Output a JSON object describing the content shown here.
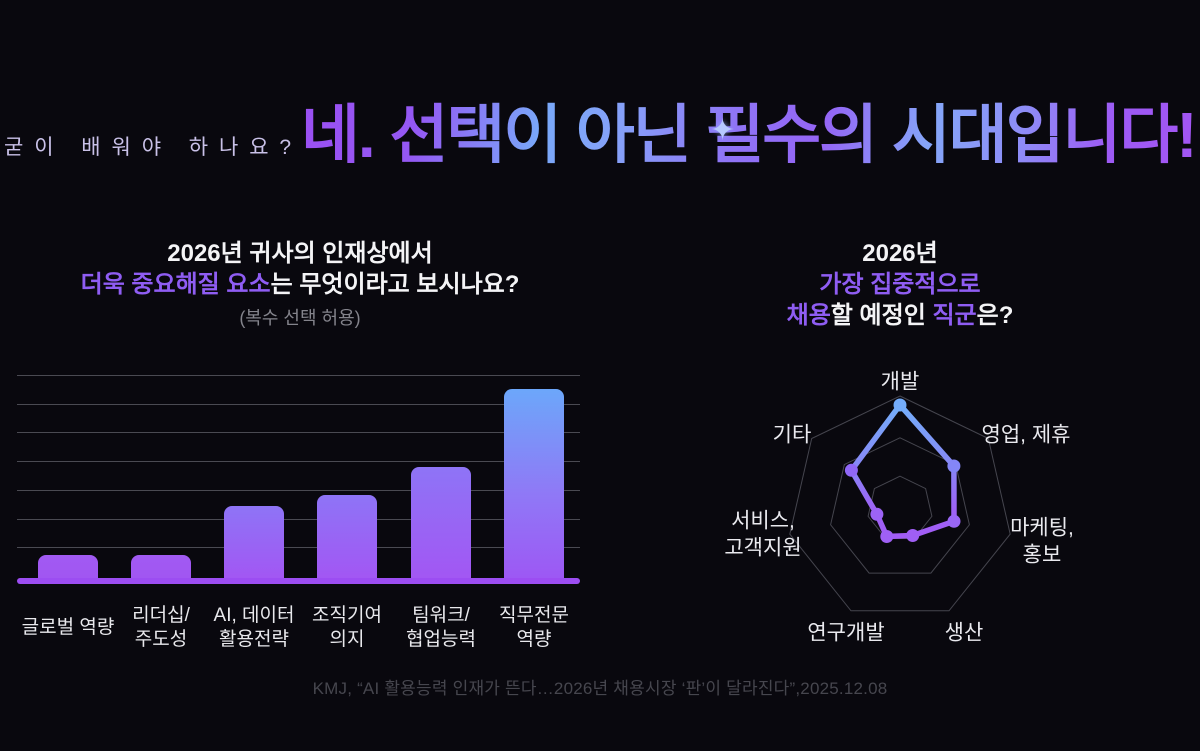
{
  "header": {
    "question": "굳이 배워야 하나요?",
    "title": "네. 선택이 아닌 필수의 시대입니다!",
    "sparkle_glyph": "✦"
  },
  "bar_section": {
    "title_line1": "2026년 귀사의 인재상에서",
    "title_line2_highlight": "더욱 중요해질 요소",
    "title_line2_rest": "는 무엇이라고 보시나요?",
    "subtitle": "(복수 선택 허용)"
  },
  "radar_section": {
    "title_line1": "2026년",
    "title_line2": "가장 집중적으로",
    "title_line3_hl1": "채용",
    "title_line3_mid": "할 예정인 ",
    "title_line3_hl2": "직군",
    "title_line3_end": "은?"
  },
  "footer": {
    "citation": "KMJ, “AI 활용능력 인재가 뜬다…2026년 채용시장 ‘판’이 달라진다”,2025.12.08"
  },
  "colors": {
    "background": "#09080e",
    "accent_purple": "#8f5df3",
    "accent_blue": "#73b0fa",
    "bar_purple": "#a158f3",
    "baseline_purple": "#9c4df2",
    "grid_gray": "#4a4a52",
    "radar_ring_gray": "#45454e"
  },
  "chart_data": [
    {
      "type": "bar",
      "title": "2026년 귀사의 인재상에서 더욱 중요해질 요소는 무엇이라고 보시나요? (복수 선택 허용)",
      "categories": [
        "글로벌 역량",
        "리더십/주도성",
        "AI, 데이터 활용전략",
        "조직기여 의지",
        "팀워크/협업능력",
        "직무전문 역량"
      ],
      "category_lines": [
        [
          "글로벌 역량"
        ],
        [
          "리더십/",
          "주도성"
        ],
        [
          "AI, 데이터",
          "활용전략"
        ],
        [
          "조직기여",
          "의지"
        ],
        [
          "팀워크/",
          "협업능력"
        ],
        [
          "직무전문",
          "역량"
        ]
      ],
      "values_pct_of_max": [
        12,
        12,
        38,
        44,
        59,
        100
      ],
      "value_axis_labels_shown": false,
      "gridline_count": 7,
      "grid": true,
      "legend": false
    },
    {
      "type": "radar",
      "title": "2026년 가장 집중적으로 채용할 예정인 직군은?",
      "categories": [
        "개발",
        "영업, 제휴",
        "마케팅, 홍보",
        "생산",
        "연구개발",
        "서비스, 고객지원",
        "기타"
      ],
      "category_lines": [
        [
          "개발"
        ],
        [
          "영업, 제휴"
        ],
        [
          "마케팅,",
          "홍보"
        ],
        [
          "생산"
        ],
        [
          "연구개발"
        ],
        [
          "서비스,",
          "고객지원"
        ],
        [
          "기타"
        ]
      ],
      "values_pct_of_max": [
        92,
        61,
        49,
        26,
        27,
        21,
        55
      ],
      "ring_levels_pct": [
        100,
        63,
        29
      ],
      "point_colors": [
        "#73acfa",
        "#8486f7",
        "#9a66f5",
        "#a05ff5",
        "#9f60f5",
        "#9c63f5",
        "#9067f6"
      ],
      "value_axis_labels_shown": false,
      "legend": false
    }
  ]
}
